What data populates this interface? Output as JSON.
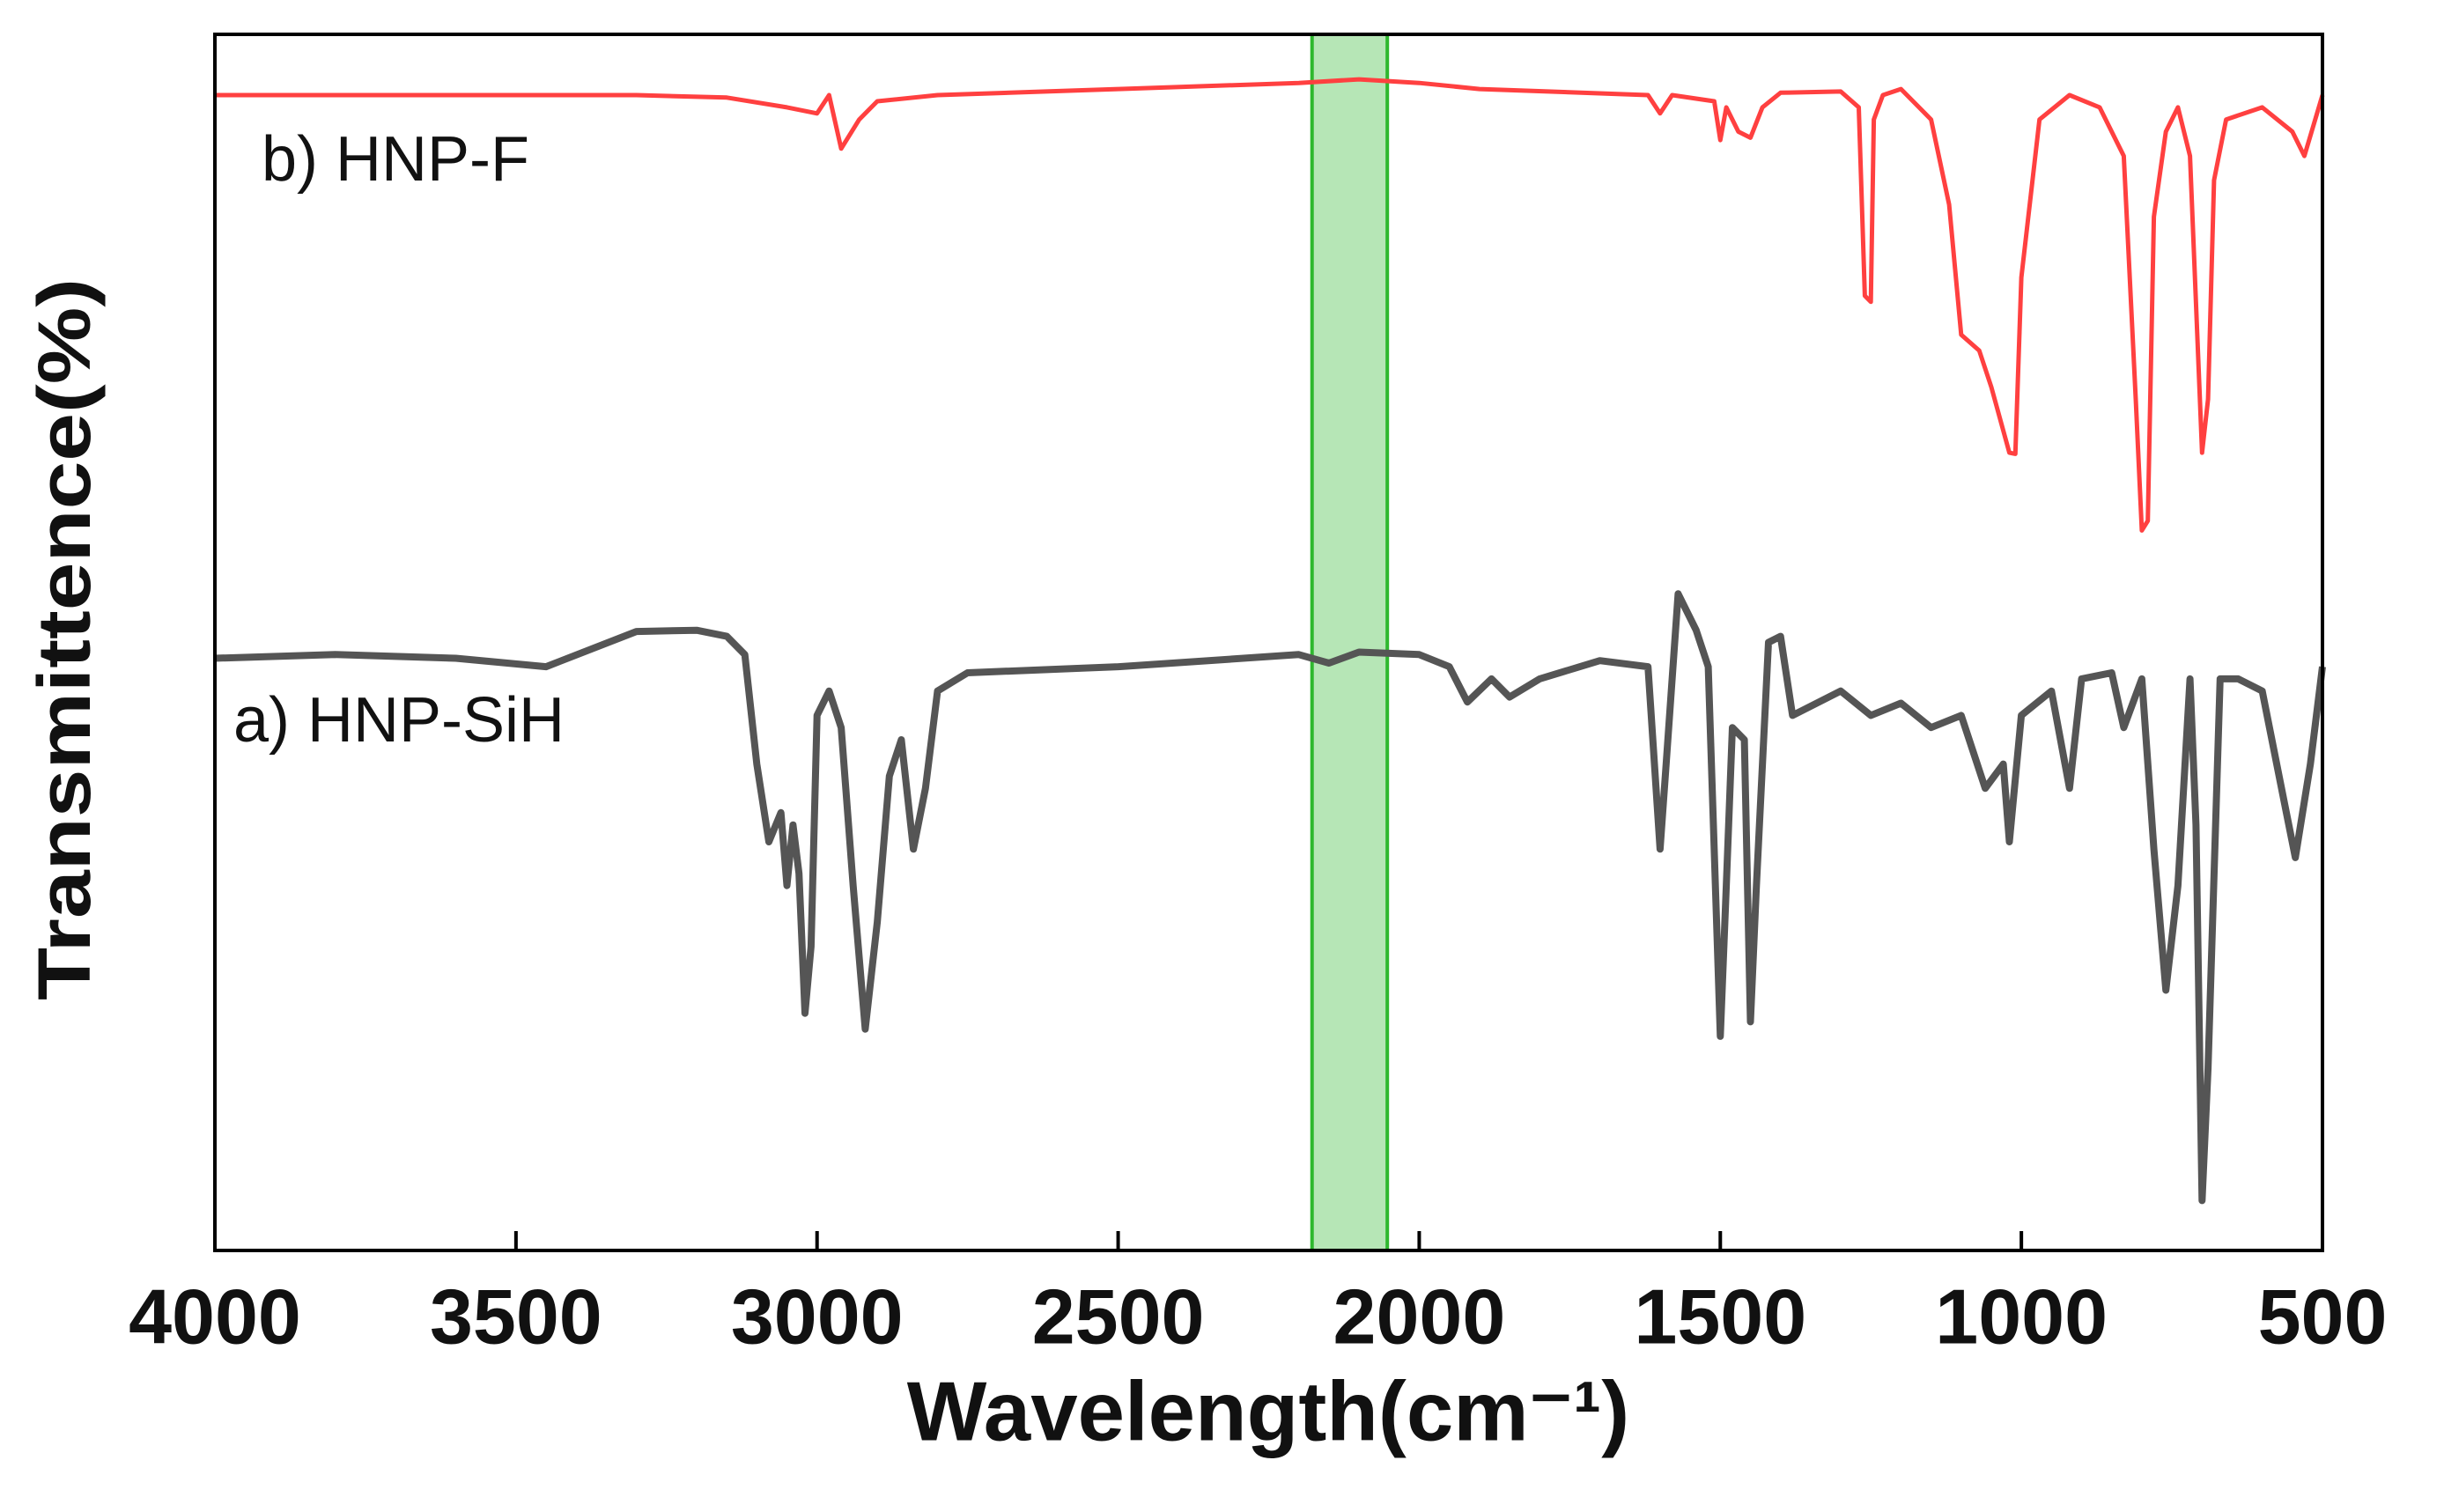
{
  "chart_data": {
    "type": "line",
    "xlabel": "Wavelength(cm⁻¹)",
    "ylabel": "Transmittence(%)",
    "xlim": [
      4000,
      500
    ],
    "ylim": [
      0,
      100
    ],
    "xticks": [
      4000,
      3500,
      3000,
      2500,
      2000,
      1500,
      1000,
      500
    ],
    "highlight": {
      "range": [
        2178,
        2053
      ],
      "color": "#2eb82e"
    },
    "series": [
      {
        "name": "b) HNP-F",
        "color": "#ff4040",
        "x": [
          4000,
          3300,
          3150,
          3050,
          3000,
          2980,
          2960,
          2930,
          2900,
          2800,
          2500,
          2200,
          2100,
          2000,
          1900,
          1620,
          1600,
          1580,
          1510,
          1500,
          1490,
          1470,
          1450,
          1430,
          1400,
          1300,
          1270,
          1260,
          1250,
          1245,
          1230,
          1200,
          1150,
          1120,
          1100,
          1070,
          1050,
          1020,
          1010,
          1000,
          970,
          920,
          870,
          830,
          810,
          800,
          790,
          780,
          760,
          740,
          720,
          700,
          690,
          680,
          660,
          600,
          550,
          530,
          500
        ],
        "values": [
          95,
          95,
          94.8,
          94,
          93.5,
          95,
          90.6,
          93,
          94.5,
          95,
          95.5,
          96,
          96.3,
          96,
          95.5,
          95,
          93.5,
          95,
          94.5,
          91.3,
          94,
          92,
          91.5,
          94,
          95.2,
          95.3,
          94,
          78.5,
          78,
          93,
          95,
          95.5,
          93,
          86,
          75.3,
          74,
          71,
          65.6,
          65.5,
          80,
          93,
          95,
          94,
          90,
          70,
          59.2,
          60,
          85,
          92,
          94,
          90,
          65.6,
          70,
          88,
          93,
          94,
          92,
          90,
          95
        ]
      },
      {
        "name": "a) HNP-SiH",
        "color": "#555555",
        "x": [
          4000,
          3800,
          3600,
          3450,
          3300,
          3200,
          3150,
          3120,
          3100,
          3080,
          3060,
          3050,
          3040,
          3030,
          3020,
          3010,
          3000,
          2980,
          2960,
          2940,
          2920,
          2900,
          2880,
          2860,
          2840,
          2820,
          2800,
          2750,
          2500,
          2200,
          2150,
          2100,
          2000,
          1950,
          1920,
          1880,
          1850,
          1800,
          1700,
          1620,
          1600,
          1590,
          1570,
          1540,
          1520,
          1500,
          1490,
          1480,
          1460,
          1450,
          1440,
          1420,
          1400,
          1380,
          1300,
          1250,
          1200,
          1150,
          1100,
          1060,
          1030,
          1020,
          1000,
          950,
          920,
          900,
          850,
          830,
          800,
          780,
          760,
          740,
          720,
          710,
          700,
          690,
          670,
          640,
          600,
          560,
          545,
          520,
          500
        ],
        "values": [
          48.7,
          49,
          48.7,
          48,
          50.9,
          51,
          50.5,
          49,
          40,
          33.6,
          36,
          30,
          35,
          31,
          19.5,
          25,
          44,
          46,
          43,
          30,
          18.2,
          27,
          39,
          42,
          33,
          38,
          46,
          47.5,
          48,
          49,
          48.3,
          49.2,
          49,
          48,
          45.1,
          47,
          45.5,
          47,
          48.5,
          48,
          33,
          40,
          54,
          51,
          48,
          17.6,
          30,
          43,
          42,
          18.8,
          30,
          50,
          50.5,
          44,
          46,
          44,
          45,
          43,
          44,
          38,
          40,
          33.6,
          44,
          46,
          38,
          47,
          47.5,
          43,
          47,
          33,
          21.4,
          30,
          47,
          35,
          4.1,
          15,
          47,
          47,
          46,
          36,
          32.3,
          40,
          48
        ]
      }
    ]
  }
}
